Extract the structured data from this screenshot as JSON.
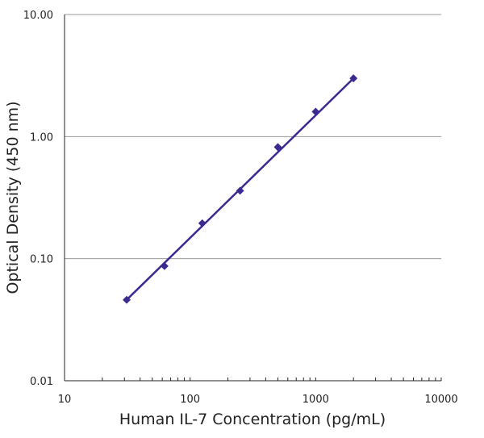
{
  "chart_data": {
    "type": "line",
    "title": "",
    "xlabel": "Human IL-7 Concentration (pg/mL)",
    "ylabel": "Optical Density (450 nm)",
    "x_scale": "log",
    "y_scale": "log",
    "xlim": [
      10,
      10000
    ],
    "ylim": [
      0.01,
      10
    ],
    "x_ticks": [
      "10",
      "100",
      "1000",
      "10000"
    ],
    "y_ticks": [
      "0.01",
      "0.10",
      "1.00",
      "10.00"
    ],
    "grid": "horizontal major",
    "legend": "none",
    "color": "#3b2a8f",
    "series": [
      {
        "x": [
          31.25,
          62.5,
          125,
          250,
          500,
          1000,
          2000
        ],
        "y": [
          0.046,
          0.087,
          0.195,
          0.36,
          0.82,
          1.6,
          3.0
        ]
      }
    ]
  }
}
